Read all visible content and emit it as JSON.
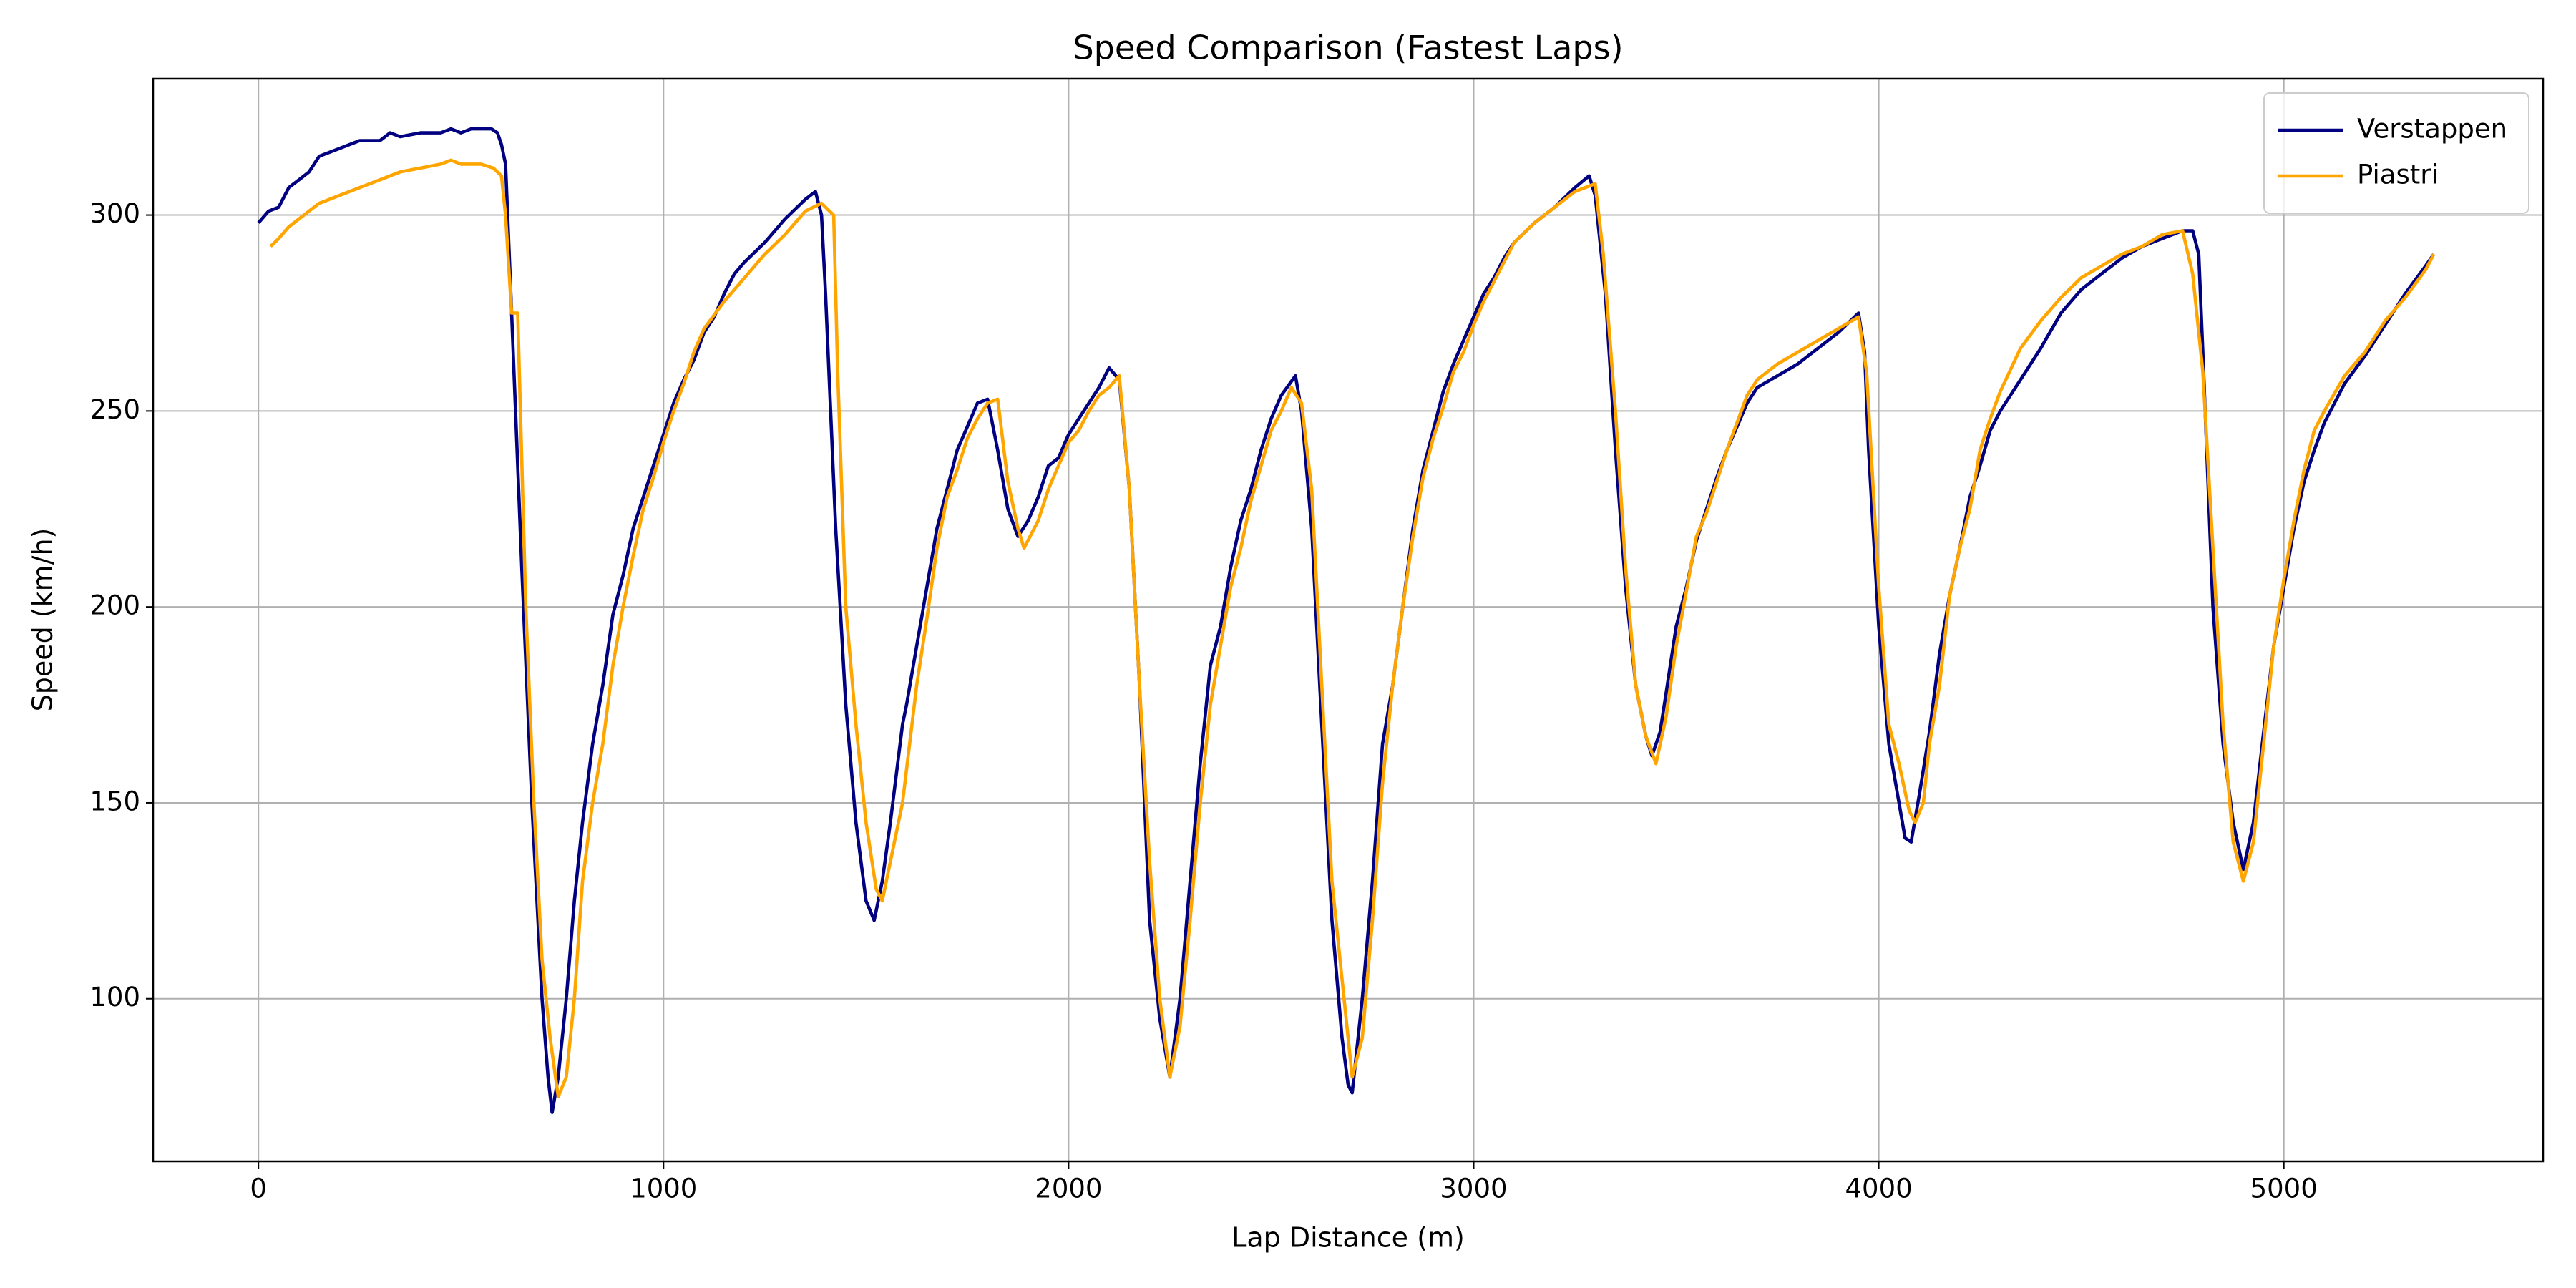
{
  "chart_data": {
    "type": "line",
    "title": "Speed Comparison (Fastest Laps)",
    "x_label": "Lap Distance (m)",
    "y_label": "Speed (km/h)",
    "xlim": [
      -260,
      5640
    ],
    "ylim": [
      58.5,
      334.8
    ],
    "xticks": [
      0,
      1000,
      2000,
      3000,
      4000,
      5000
    ],
    "yticks": [
      100,
      150,
      200,
      250,
      300
    ],
    "grid": true,
    "legend": "upper right",
    "series": [
      {
        "name": "Verstappen",
        "color": "#000080",
        "x": [
          0,
          25,
          50,
          75,
          100,
          125,
          150,
          200,
          250,
          300,
          325,
          350,
          400,
          450,
          475,
          500,
          525,
          575,
          590,
          600,
          610,
          625,
          650,
          675,
          700,
          715,
          725,
          740,
          760,
          780,
          800,
          825,
          850,
          875,
          900,
          925,
          950,
          975,
          1000,
          1025,
          1050,
          1075,
          1100,
          1125,
          1150,
          1175,
          1200,
          1250,
          1300,
          1350,
          1375,
          1390,
          1400,
          1425,
          1450,
          1475,
          1500,
          1520,
          1540,
          1560,
          1590,
          1600,
          1625,
          1650,
          1675,
          1700,
          1725,
          1750,
          1775,
          1800,
          1825,
          1850,
          1875,
          1900,
          1925,
          1950,
          1975,
          2000,
          2025,
          2050,
          2075,
          2100,
          2125,
          2150,
          2175,
          2200,
          2225,
          2250,
          2275,
          2300,
          2325,
          2350,
          2375,
          2400,
          2425,
          2450,
          2475,
          2500,
          2525,
          2560,
          2575,
          2600,
          2625,
          2650,
          2675,
          2690,
          2700,
          2725,
          2750,
          2775,
          2800,
          2825,
          2850,
          2875,
          2900,
          2925,
          2950,
          2975,
          3000,
          3025,
          3050,
          3075,
          3100,
          3150,
          3200,
          3250,
          3285,
          3300,
          3325,
          3350,
          3375,
          3400,
          3425,
          3440,
          3460,
          3475,
          3500,
          3525,
          3550,
          3575,
          3600,
          3625,
          3650,
          3675,
          3700,
          3750,
          3800,
          3850,
          3900,
          3950,
          3965,
          3975,
          4000,
          4025,
          4050,
          4065,
          4080,
          4100,
          4125,
          4150,
          4175,
          4200,
          4225,
          4250,
          4275,
          4300,
          4350,
          4400,
          4450,
          4500,
          4550,
          4600,
          4650,
          4700,
          4750,
          4775,
          4790,
          4800,
          4825,
          4850,
          4875,
          4900,
          4925,
          4950,
          4975,
          5000,
          5025,
          5050,
          5075,
          5100,
          5150,
          5200,
          5250,
          5300,
          5350,
          5370
        ],
        "values": [
          298,
          301,
          302,
          307,
          309,
          311,
          315,
          317,
          319,
          319,
          321,
          320,
          321,
          321,
          322,
          321,
          322,
          322,
          321,
          318,
          313,
          275,
          210,
          150,
          100,
          80,
          71,
          80,
          100,
          125,
          145,
          165,
          180,
          198,
          208,
          220,
          228,
          236,
          244,
          252,
          258,
          263,
          270,
          274,
          280,
          285,
          288,
          293,
          299,
          304,
          306,
          300,
          280,
          220,
          175,
          145,
          125,
          120,
          130,
          145,
          170,
          175,
          190,
          205,
          220,
          230,
          240,
          246,
          252,
          253,
          240,
          225,
          218,
          222,
          228,
          236,
          238,
          244,
          248,
          252,
          256,
          261,
          258,
          230,
          180,
          120,
          95,
          80,
          100,
          130,
          160,
          185,
          195,
          210,
          222,
          230,
          240,
          248,
          254,
          259,
          250,
          220,
          170,
          120,
          90,
          78,
          76,
          100,
          130,
          165,
          180,
          200,
          220,
          235,
          245,
          255,
          262,
          268,
          274,
          280,
          284,
          289,
          293,
          298,
          302,
          307,
          310,
          305,
          280,
          240,
          205,
          180,
          167,
          162,
          168,
          178,
          195,
          205,
          217,
          225,
          233,
          240,
          246,
          252,
          256,
          259,
          262,
          266,
          270,
          275,
          265,
          240,
          195,
          165,
          150,
          141,
          140,
          152,
          168,
          188,
          203,
          215,
          228,
          236,
          245,
          250,
          258,
          266,
          275,
          281,
          285,
          289,
          292,
          294,
          296,
          296,
          290,
          265,
          200,
          165,
          145,
          133,
          145,
          168,
          190,
          205,
          220,
          232,
          240,
          247,
          257,
          264,
          272,
          280,
          287,
          290
        ]
      },
      {
        "name": "Piastri",
        "color": "#ffa500",
        "x": [
          30,
          50,
          75,
          100,
          125,
          150,
          200,
          250,
          300,
          350,
          400,
          450,
          475,
          500,
          550,
          580,
          600,
          610,
          625,
          640,
          660,
          680,
          700,
          720,
          740,
          760,
          780,
          800,
          825,
          850,
          875,
          900,
          925,
          950,
          975,
          1000,
          1025,
          1050,
          1075,
          1100,
          1150,
          1200,
          1250,
          1300,
          1350,
          1390,
          1420,
          1430,
          1450,
          1475,
          1500,
          1525,
          1540,
          1560,
          1590,
          1625,
          1650,
          1675,
          1700,
          1725,
          1750,
          1775,
          1800,
          1825,
          1850,
          1875,
          1890,
          1925,
          1950,
          1975,
          2000,
          2025,
          2050,
          2075,
          2100,
          2125,
          2150,
          2175,
          2200,
          2225,
          2250,
          2275,
          2300,
          2325,
          2350,
          2375,
          2400,
          2425,
          2450,
          2475,
          2500,
          2525,
          2550,
          2575,
          2600,
          2625,
          2650,
          2675,
          2700,
          2725,
          2750,
          2775,
          2800,
          2825,
          2850,
          2875,
          2900,
          2925,
          2950,
          2975,
          3000,
          3025,
          3050,
          3075,
          3100,
          3150,
          3200,
          3250,
          3300,
          3320,
          3350,
          3375,
          3400,
          3425,
          3450,
          3475,
          3500,
          3525,
          3550,
          3575,
          3600,
          3625,
          3650,
          3675,
          3700,
          3750,
          3800,
          3850,
          3900,
          3950,
          3970,
          4000,
          4025,
          4050,
          4075,
          4090,
          4110,
          4125,
          4150,
          4175,
          4200,
          4225,
          4250,
          4275,
          4300,
          4350,
          4400,
          4450,
          4500,
          4550,
          4600,
          4650,
          4700,
          4750,
          4775,
          4800,
          4825,
          4850,
          4875,
          4900,
          4925,
          4950,
          4975,
          5000,
          5025,
          5050,
          5075,
          5100,
          5150,
          5200,
          5250,
          5300,
          5350,
          5370
        ],
        "values": [
          292,
          294,
          297,
          299,
          301,
          303,
          305,
          307,
          309,
          311,
          312,
          313,
          314,
          313,
          313,
          312,
          310,
          300,
          275,
          275,
          200,
          150,
          110,
          90,
          75,
          80,
          100,
          130,
          150,
          165,
          185,
          200,
          213,
          225,
          233,
          242,
          250,
          257,
          265,
          271,
          278,
          284,
          290,
          295,
          301,
          303,
          300,
          260,
          200,
          170,
          145,
          128,
          125,
          135,
          150,
          180,
          197,
          215,
          228,
          235,
          243,
          248,
          252,
          253,
          232,
          220,
          215,
          222,
          230,
          236,
          242,
          245,
          250,
          254,
          256,
          259,
          230,
          180,
          135,
          100,
          80,
          93,
          120,
          150,
          175,
          190,
          205,
          215,
          227,
          236,
          245,
          250,
          256,
          252,
          230,
          180,
          130,
          105,
          80,
          90,
          120,
          155,
          180,
          200,
          218,
          233,
          243,
          251,
          260,
          265,
          272,
          278,
          283,
          288,
          293,
          298,
          302,
          306,
          308,
          290,
          250,
          210,
          180,
          167,
          160,
          172,
          190,
          204,
          218,
          224,
          232,
          240,
          247,
          254,
          258,
          262,
          265,
          268,
          271,
          274,
          260,
          205,
          170,
          160,
          148,
          145,
          150,
          165,
          180,
          203,
          215,
          225,
          240,
          248,
          255,
          266,
          273,
          279,
          284,
          287,
          290,
          292,
          295,
          296,
          285,
          260,
          215,
          170,
          140,
          130,
          140,
          165,
          190,
          207,
          222,
          235,
          245,
          250,
          259,
          265,
          273,
          279,
          286,
          290
        ]
      }
    ]
  }
}
